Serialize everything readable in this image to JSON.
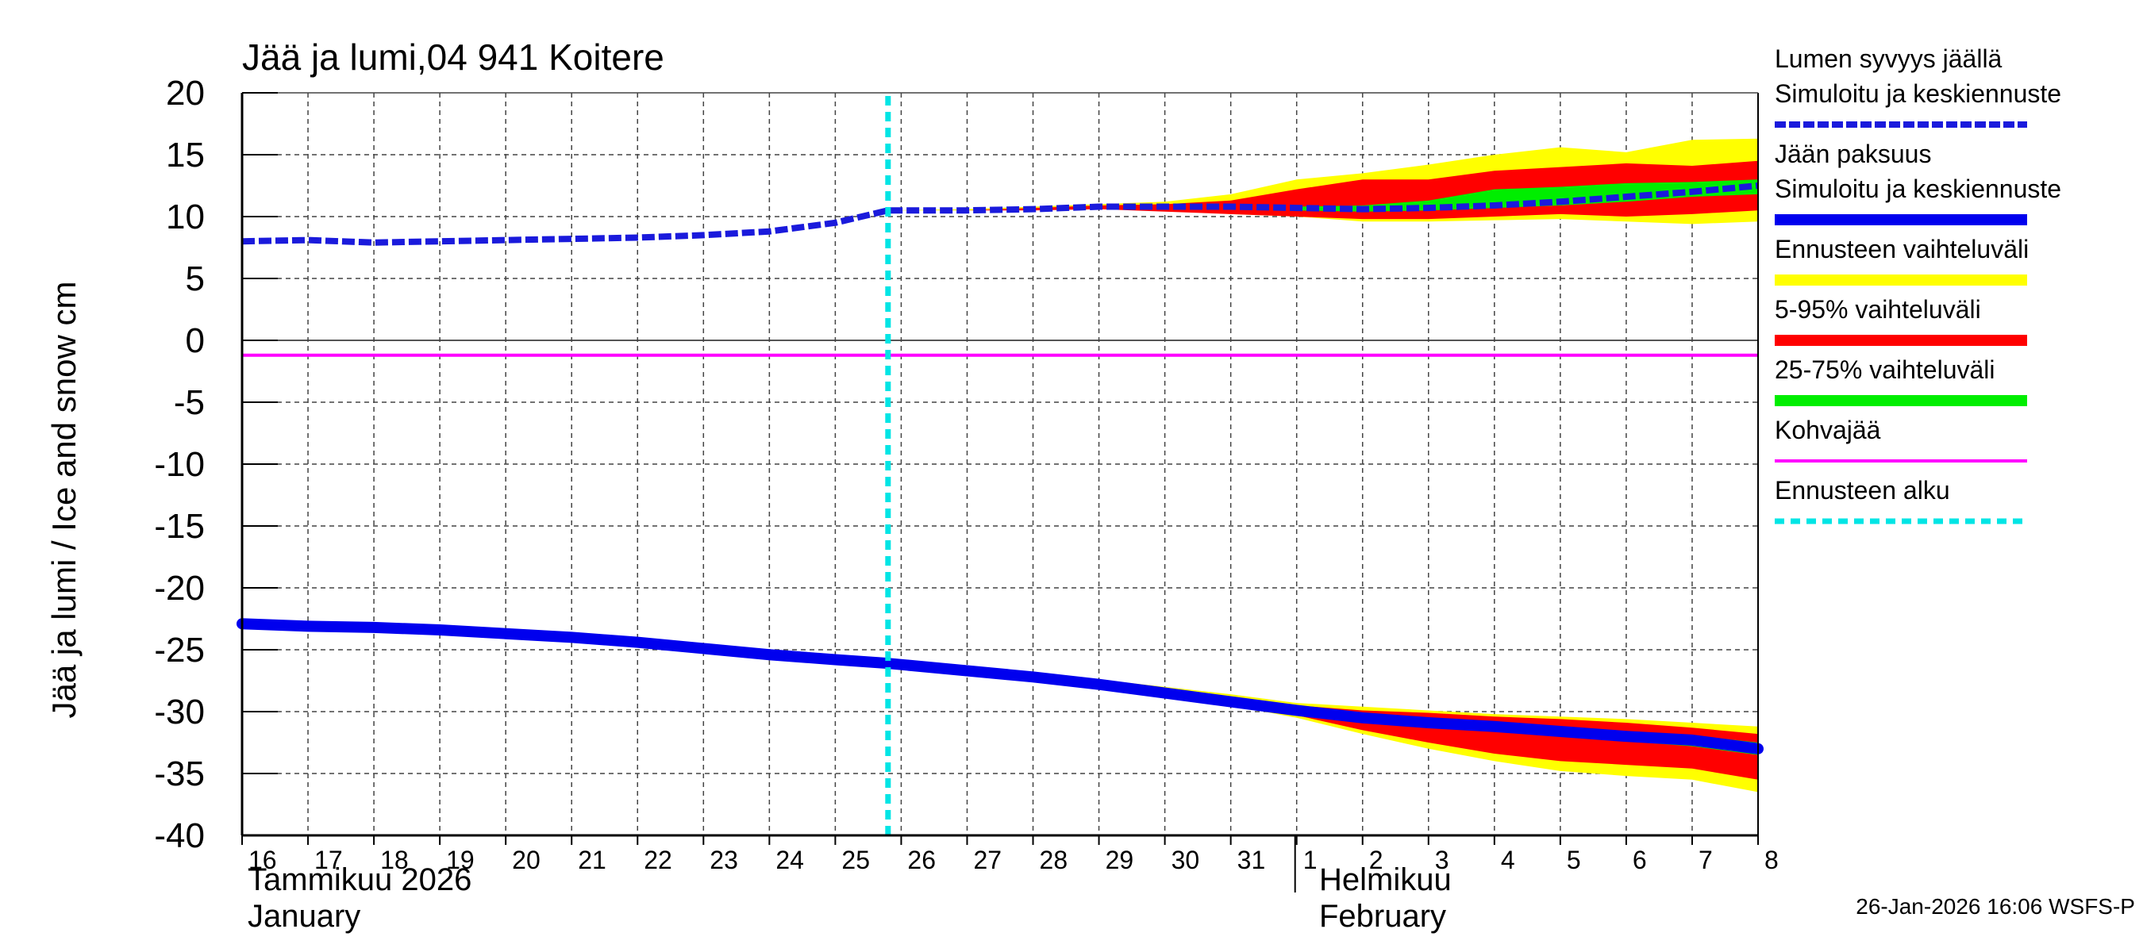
{
  "chart_data": {
    "type": "area",
    "title": "Jää ja lumi,04 941 Koitere",
    "ylabel": "Jää ja lumi / Ice and snow    cm",
    "ylim": [
      -40,
      20
    ],
    "yticks": [
      20,
      15,
      10,
      5,
      0,
      -5,
      -10,
      -15,
      -20,
      -25,
      -30,
      -35,
      -40
    ],
    "xlim": [
      16,
      39
    ],
    "x_tick_labels": [
      "16",
      "17",
      "18",
      "19",
      "20",
      "21",
      "22",
      "23",
      "24",
      "25",
      "26",
      "27",
      "28",
      "29",
      "30",
      "31",
      "1",
      "2",
      "3",
      "4",
      "5",
      "6",
      "7",
      "8"
    ],
    "month_labels": [
      {
        "fi": "Tammikuu  2026",
        "en": "January"
      },
      {
        "fi": "Helmikuu",
        "en": "February"
      }
    ],
    "forecast_start": 25.8,
    "kohvajaa_level": -1.2,
    "footer": "26-Jan-2026 16:06 WSFS-P",
    "series": [
      {
        "name": "Lumen syvyys jäällä Simuloitu ja keskiennuste",
        "style": "dashed",
        "color": "#1a1adc",
        "x": [
          16,
          17,
          18,
          19,
          20,
          21,
          22,
          23,
          24,
          25,
          25.8,
          27,
          28,
          29,
          30,
          31,
          32,
          33,
          34,
          35,
          36,
          37,
          38,
          39
        ],
        "y": [
          8.0,
          8.1,
          7.9,
          8.0,
          8.1,
          8.2,
          8.3,
          8.5,
          8.8,
          9.5,
          10.5,
          10.5,
          10.6,
          10.8,
          10.8,
          10.8,
          10.7,
          10.6,
          10.7,
          10.9,
          11.2,
          11.6,
          12.0,
          12.5
        ]
      },
      {
        "name": "Jään paksuus Simuloitu ja keskiennuste",
        "style": "solid",
        "color": "#0000ee",
        "x": [
          16,
          17,
          18,
          19,
          20,
          21,
          22,
          23,
          24,
          25,
          25.8,
          27,
          28,
          29,
          30,
          31,
          32,
          33,
          34,
          35,
          36,
          37,
          38,
          39
        ],
        "y": [
          -22.9,
          -23.1,
          -23.2,
          -23.4,
          -23.7,
          -24.0,
          -24.4,
          -24.9,
          -25.4,
          -25.8,
          -26.1,
          -26.7,
          -27.2,
          -27.8,
          -28.5,
          -29.2,
          -29.9,
          -30.5,
          -30.9,
          -31.2,
          -31.6,
          -32.0,
          -32.3,
          -33.0
        ]
      }
    ],
    "bands": [
      {
        "name": "Ennusteen vaihteluväli",
        "color": "#ffff00",
        "x": [
          25.8,
          27,
          28,
          29,
          30,
          31,
          32,
          33,
          34,
          35,
          36,
          37,
          38,
          39
        ],
        "ice_low": [
          -26.1,
          -26.8,
          -27.5,
          -28.2,
          -28.9,
          -29.5,
          -30.5,
          -31.8,
          -33.0,
          -34.0,
          -34.8,
          -35.2,
          -35.5,
          -36.5
        ],
        "ice_high": [
          -26.1,
          -26.6,
          -27.0,
          -27.4,
          -28.0,
          -28.6,
          -29.3,
          -29.6,
          -29.9,
          -30.2,
          -30.4,
          -30.6,
          -30.9,
          -31.2
        ],
        "snow_low": [
          10.5,
          10.5,
          10.6,
          10.6,
          10.5,
          10.2,
          10.0,
          9.6,
          9.6,
          9.7,
          9.8,
          9.6,
          9.4,
          9.6
        ],
        "snow_high": [
          10.5,
          10.6,
          10.8,
          11.0,
          11.2,
          11.8,
          13.0,
          13.5,
          14.2,
          15.0,
          15.6,
          15.2,
          16.2,
          16.3
        ]
      },
      {
        "name": "5-95% vaihteluväli",
        "color": "#ff0000",
        "x": [
          25.8,
          27,
          28,
          29,
          30,
          31,
          32,
          33,
          34,
          35,
          36,
          37,
          38,
          39
        ],
        "ice_low": [
          -26.1,
          -26.8,
          -27.5,
          -28.2,
          -28.9,
          -29.5,
          -30.3,
          -31.5,
          -32.5,
          -33.4,
          -34.0,
          -34.3,
          -34.6,
          -35.5
        ],
        "ice_high": [
          -26.1,
          -26.6,
          -27.1,
          -27.6,
          -28.2,
          -28.8,
          -29.5,
          -29.9,
          -30.1,
          -30.4,
          -30.6,
          -30.9,
          -31.3,
          -31.8
        ],
        "snow_low": [
          10.5,
          10.5,
          10.5,
          10.6,
          10.4,
          10.2,
          10.0,
          9.8,
          9.8,
          10.0,
          10.2,
          10.0,
          10.2,
          10.5
        ],
        "snow_high": [
          10.5,
          10.5,
          10.7,
          10.9,
          11.0,
          11.3,
          12.2,
          13.0,
          13.0,
          13.7,
          14.0,
          14.3,
          14.1,
          14.5
        ]
      },
      {
        "name": "25-75% vaihteluväli",
        "color": "#00ee00",
        "x": [
          32,
          33,
          34,
          35,
          36,
          37,
          38,
          39
        ],
        "ice_low": [
          -30.1,
          -30.7,
          -31.1,
          -31.5,
          -31.9,
          -32.4,
          -32.8,
          -33.5
        ],
        "ice_high": [
          -29.8,
          -30.3,
          -30.6,
          -31.0,
          -31.3,
          -31.6,
          -31.9,
          -32.5
        ],
        "snow_low": [
          10.5,
          10.4,
          10.5,
          10.7,
          10.9,
          11.2,
          11.6,
          11.8
        ],
        "snow_high": [
          10.8,
          10.9,
          11.3,
          12.2,
          12.4,
          12.7,
          12.8,
          13.0
        ]
      }
    ]
  },
  "legend": [
    {
      "line1": "Lumen syvyys jäällä",
      "line2": "Simuloitu ja keskiennuste",
      "color": "#1a1adc",
      "style": "dashed"
    },
    {
      "line1": "Jään paksuus",
      "line2": "Simuloitu ja keskiennuste",
      "color": "#0000ee",
      "style": "solid"
    },
    {
      "line1": "Ennusteen vaihteluväli",
      "color": "#ffff00",
      "style": "band"
    },
    {
      "line1": "5-95% vaihteluväli",
      "color": "#ff0000",
      "style": "band"
    },
    {
      "line1": "25-75% vaihteluväli",
      "color": "#00ee00",
      "style": "band"
    },
    {
      "line1": "Kohvajää",
      "color": "#ff00ff",
      "style": "thin"
    },
    {
      "line1": "Ennusteen alku",
      "color": "#00e5e5",
      "style": "dotted"
    }
  ]
}
